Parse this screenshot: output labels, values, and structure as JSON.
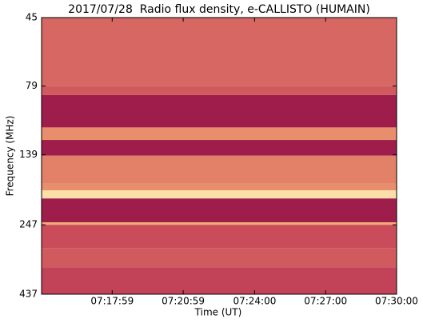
{
  "chart_data": {
    "type": "spectrogram",
    "title": "2017/07/28  Radio flux density, e-CALLISTO (HUMAIN)",
    "x_label": "Time (UT)",
    "y_label": "Frequency (MHz)",
    "xlim": [
      26100,
      27000
    ],
    "xticks": [
      {
        "value": 26279,
        "label": "07:17:59"
      },
      {
        "value": 26459,
        "label": "07:20:59"
      },
      {
        "value": 26640,
        "label": "07:24:00"
      },
      {
        "value": 26820,
        "label": "07:27:00"
      },
      {
        "value": 27000,
        "label": "07:30:00"
      }
    ],
    "ylim": [
      45,
      437
    ],
    "yticks": [
      45,
      79,
      139,
      247,
      437
    ],
    "y_log": true,
    "y_inverted": true,
    "colormap": [
      "#8e0a44",
      "#c8485a",
      "#f0a070",
      "#fff8c0"
    ],
    "vlim": [
      0,
      1
    ],
    "bands": [
      {
        "from": 45,
        "to": 79,
        "value": 0.45
      },
      {
        "from": 79,
        "to": 85,
        "value": 0.4
      },
      {
        "from": 85,
        "to": 111,
        "value": 0.1
      },
      {
        "from": 111,
        "to": 123,
        "value": 0.6
      },
      {
        "from": 123,
        "to": 140,
        "value": 0.1
      },
      {
        "from": 140,
        "to": 176,
        "value": 0.55
      },
      {
        "from": 176,
        "to": 186,
        "value": 0.6
      },
      {
        "from": 186,
        "to": 199,
        "value": 0.9
      },
      {
        "from": 199,
        "to": 242,
        "value": 0.1
      },
      {
        "from": 242,
        "to": 247,
        "value": 0.7
      },
      {
        "from": 247,
        "to": 300,
        "value": 0.35
      },
      {
        "from": 300,
        "to": 350,
        "value": 0.4
      },
      {
        "from": 350,
        "to": 437,
        "value": 0.3
      }
    ]
  }
}
